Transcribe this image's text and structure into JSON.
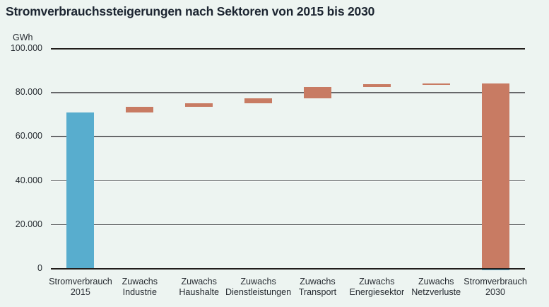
{
  "chart_data": {
    "type": "bar",
    "subtype": "waterfall",
    "title": "Stromverbrauchssteigerungen nach Sektoren von 2015 bis 2030",
    "ylabel": "GWh",
    "xlabel": "",
    "ylim": [
      0,
      100000
    ],
    "grid": true,
    "legend": false,
    "yticks": [
      {
        "value": 0,
        "label": "0"
      },
      {
        "value": 20000,
        "label": "20.000"
      },
      {
        "value": 40000,
        "label": "40.000"
      },
      {
        "value": 60000,
        "label": "60.000"
      },
      {
        "value": 80000,
        "label": "80.000"
      },
      {
        "value": 100000,
        "label": "100.000"
      }
    ],
    "categories": [
      {
        "label_line1": "Stromverbrauch",
        "label_line2": "2015",
        "start": 0,
        "end": 71000,
        "delta": 71000,
        "role": "total",
        "color_key": "blue",
        "base_strip": false
      },
      {
        "label_line1": "Zuwachs",
        "label_line2": "Industrie",
        "start": 71000,
        "end": 73500,
        "delta": 2500,
        "role": "increase",
        "color_key": "orange",
        "base_strip": false
      },
      {
        "label_line1": "Zuwachs",
        "label_line2": "Haushalte",
        "start": 73500,
        "end": 75200,
        "delta": 1700,
        "role": "increase",
        "color_key": "orange",
        "base_strip": false
      },
      {
        "label_line1": "Zuwachs",
        "label_line2": "Dienstleistungen",
        "start": 75200,
        "end": 77500,
        "delta": 2300,
        "role": "increase",
        "color_key": "orange",
        "base_strip": false
      },
      {
        "label_line1": "Zuwachs",
        "label_line2": "Transport",
        "start": 77500,
        "end": 82700,
        "delta": 5200,
        "role": "increase",
        "color_key": "orange",
        "base_strip": false
      },
      {
        "label_line1": "Zuwachs",
        "label_line2": "Energiesektor",
        "start": 82700,
        "end": 83900,
        "delta": 1200,
        "role": "increase",
        "color_key": "orange",
        "base_strip": false
      },
      {
        "label_line1": "Zuwachs",
        "label_line2": "Netzverluste",
        "start": 83900,
        "end": 84200,
        "delta": 300,
        "role": "increase",
        "color_key": "orange",
        "base_strip": false
      },
      {
        "label_line1": "Stromverbrauch",
        "label_line2": "2030",
        "start": 0,
        "end": 84200,
        "delta": 84200,
        "role": "total",
        "color_key": "orange",
        "base_strip": true
      }
    ]
  },
  "colors": {
    "background": "#edf4f1",
    "blue": "#58adce",
    "orange": "#c87b63",
    "grid": "#66686a",
    "axis_dark": "#211d1b",
    "text": "#262b31",
    "title": "#1c2531"
  }
}
